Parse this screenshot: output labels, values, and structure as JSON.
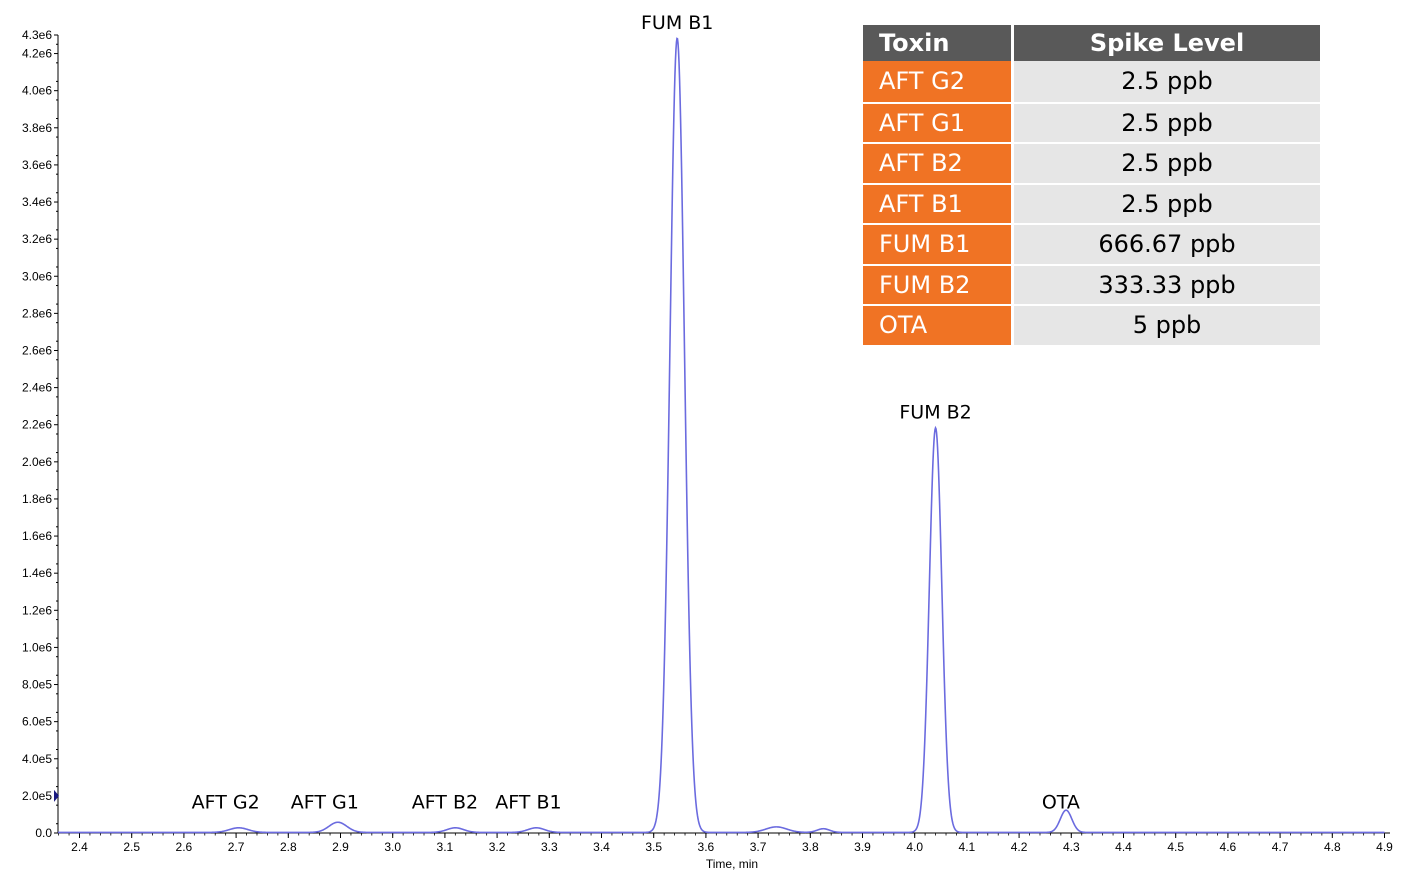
{
  "chart_data": {
    "type": "line",
    "title": "",
    "xlabel": "Time, min",
    "ylabel": "",
    "xlim": [
      2.35,
      4.9
    ],
    "ylim": [
      0,
      4.3
    ],
    "y_unit_scale": 1000000,
    "x_ticks": [
      "2.4",
      "2.5",
      "2.6",
      "2.7",
      "2.8",
      "2.9",
      "3.0",
      "3.1",
      "3.2",
      "3.3",
      "3.4",
      "3.5",
      "3.6",
      "3.7",
      "3.8",
      "3.9",
      "4.0",
      "4.1",
      "4.2",
      "4.3",
      "4.4",
      "4.5",
      "4.6",
      "4.7",
      "4.8",
      "4.9"
    ],
    "y_ticks": [
      {
        "value": 0.0,
        "label": "0.0"
      },
      {
        "value": 0.2,
        "label": "2.0e5"
      },
      {
        "value": 0.4,
        "label": "4.0e5"
      },
      {
        "value": 0.6,
        "label": "6.0e5"
      },
      {
        "value": 0.8,
        "label": "8.0e5"
      },
      {
        "value": 1.0,
        "label": "1.0e6"
      },
      {
        "value": 1.2,
        "label": "1.2e6"
      },
      {
        "value": 1.4,
        "label": "1.4e6"
      },
      {
        "value": 1.6,
        "label": "1.6e6"
      },
      {
        "value": 1.8,
        "label": "1.8e6"
      },
      {
        "value": 2.0,
        "label": "2.0e6"
      },
      {
        "value": 2.2,
        "label": "2.2e6"
      },
      {
        "value": 2.4,
        "label": "2.4e6"
      },
      {
        "value": 2.6,
        "label": "2.6e6"
      },
      {
        "value": 2.8,
        "label": "2.8e6"
      },
      {
        "value": 3.0,
        "label": "3.0e6"
      },
      {
        "value": 3.2,
        "label": "3.2e6"
      },
      {
        "value": 3.4,
        "label": "3.4e6"
      },
      {
        "value": 3.6,
        "label": "3.6e6"
      },
      {
        "value": 3.8,
        "label": "3.8e6"
      },
      {
        "value": 4.0,
        "label": "4.0e6"
      },
      {
        "value": 4.2,
        "label": "4.2e6"
      },
      {
        "value": 4.3,
        "label": "4.3e6"
      }
    ],
    "series": [
      {
        "color": "#6b6bdf",
        "peaks": [
          {
            "name": "AFT G2",
            "x": 2.705,
            "y": 0.025,
            "width": 0.018
          },
          {
            "name": "AFT G1",
            "x": 2.895,
            "y": 0.055,
            "width": 0.017
          },
          {
            "name": "AFT B2",
            "x": 3.12,
            "y": 0.025,
            "width": 0.016
          },
          {
            "name": "AFT B1",
            "x": 3.275,
            "y": 0.025,
            "width": 0.016
          },
          {
            "name": "FUM B1",
            "x": 3.545,
            "y": 4.28,
            "width": 0.014
          },
          {
            "name": "",
            "x": 3.735,
            "y": 0.03,
            "width": 0.02
          },
          {
            "name": "",
            "x": 3.825,
            "y": 0.02,
            "width": 0.012
          },
          {
            "name": "FUM B2",
            "x": 4.04,
            "y": 2.18,
            "width": 0.012
          },
          {
            "name": "OTA",
            "x": 4.29,
            "y": 0.12,
            "width": 0.011
          }
        ]
      }
    ],
    "annotations": [
      {
        "text": "FUM B1",
        "x": 3.545,
        "y": 4.3
      },
      {
        "text": "FUM B2",
        "x": 4.04,
        "y": 2.2
      },
      {
        "text": "AFT G2",
        "x": 2.68,
        "y": 0.1
      },
      {
        "text": "AFT G1",
        "x": 2.87,
        "y": 0.1
      },
      {
        "text": "AFT B2",
        "x": 3.1,
        "y": 0.1
      },
      {
        "text": "AFT B1",
        "x": 3.26,
        "y": 0.1
      },
      {
        "text": "OTA",
        "x": 4.28,
        "y": 0.1
      }
    ]
  },
  "table": {
    "headers": [
      "Toxin",
      "Spike Level"
    ],
    "rows": [
      [
        "AFT G2",
        "2.5 ppb"
      ],
      [
        "AFT G1",
        "2.5 ppb"
      ],
      [
        "AFT B2",
        "2.5 ppb"
      ],
      [
        "AFT B1",
        "2.5 ppb"
      ],
      [
        "FUM B1",
        "666.67 ppb"
      ],
      [
        "FUM B2",
        "333.33 ppb"
      ],
      [
        "OTA",
        "5 ppb"
      ]
    ],
    "header_color": "#595959",
    "toxin_cell_color": "#f07324",
    "level_cell_color": "#e6e6e6"
  }
}
